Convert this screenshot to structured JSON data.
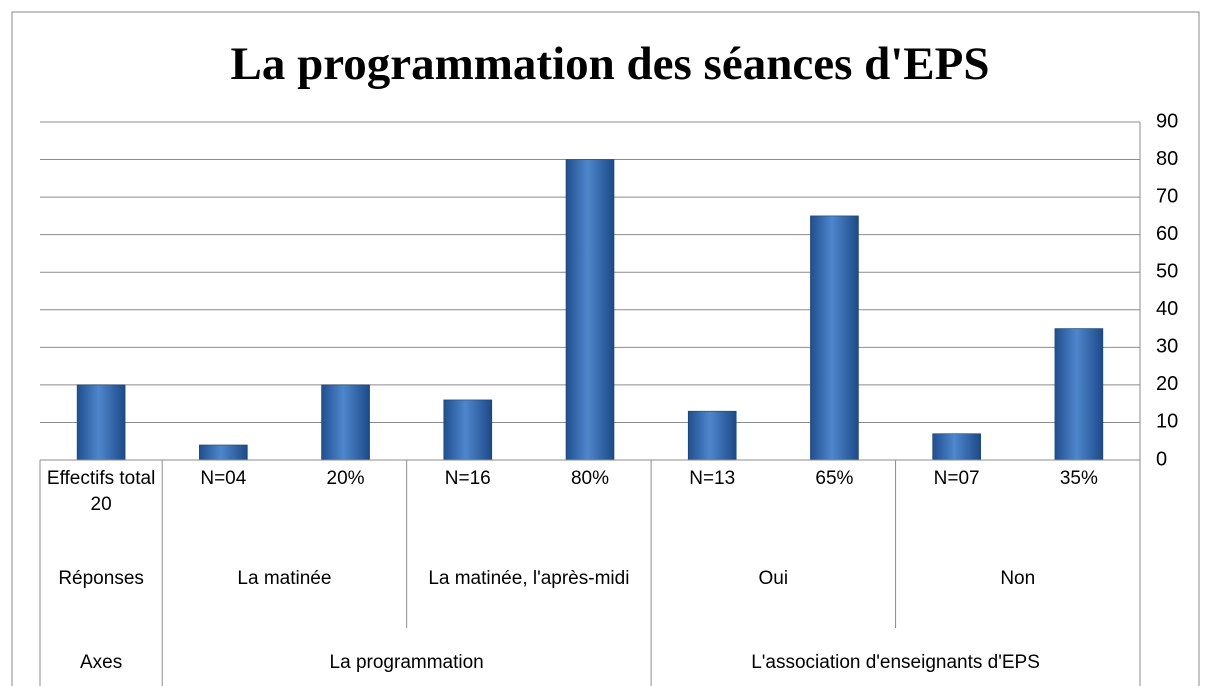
{
  "chart_data": {
    "type": "bar",
    "title": "La programmation des séances d'EPS",
    "ylim": [
      0,
      90
    ],
    "yticks": [
      0,
      10,
      20,
      30,
      40,
      50,
      60,
      70,
      80,
      90
    ],
    "grid": true,
    "color": "#3a6fb5",
    "groups": [
      {
        "name": "Axes",
        "subgroups": [
          {
            "name": "Réponses",
            "categories": [
              "Effectifs total 20"
            ],
            "values": [
              20
            ]
          }
        ]
      },
      {
        "name": "La programmation",
        "subgroups": [
          {
            "name": "La matinée",
            "categories": [
              "N=04",
              "20%"
            ],
            "values": [
              4,
              20
            ]
          },
          {
            "name": "La matinée, l'après-midi",
            "categories": [
              "N=16",
              "80%"
            ],
            "values": [
              16,
              80
            ]
          }
        ]
      },
      {
        "name": "L'association d'enseignants d'EPS",
        "subgroups": [
          {
            "name": "Oui",
            "categories": [
              "N=13",
              "65%"
            ],
            "values": [
              13,
              65
            ]
          },
          {
            "name": "Non",
            "categories": [
              "N=07",
              "35%"
            ],
            "values": [
              7,
              35
            ]
          }
        ]
      }
    ]
  }
}
